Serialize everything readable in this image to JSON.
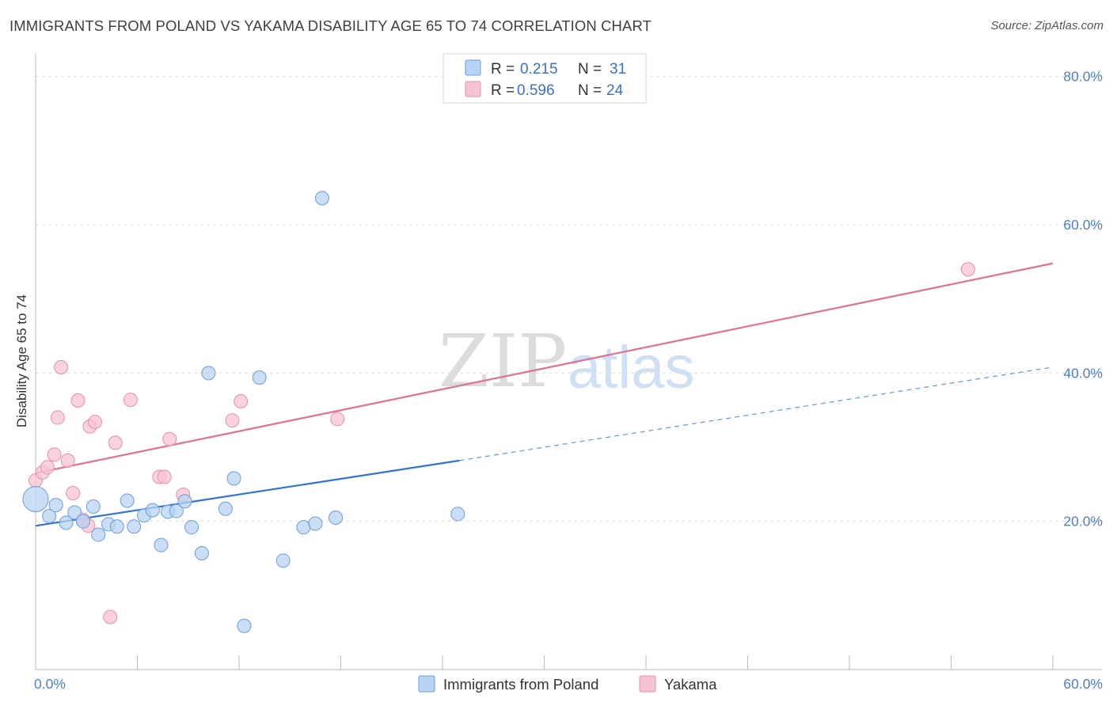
{
  "title": "IMMIGRANTS FROM POLAND VS YAKAMA DISABILITY AGE 65 TO 74 CORRELATION CHART",
  "source": "Source: ZipAtlas.com",
  "watermark": {
    "zip": "ZIP",
    "atlas": "atlas"
  },
  "colors": {
    "blue_fill": "#b8d3f3",
    "blue_stroke": "#6b9ddc",
    "blue_line": "#2f74d0",
    "pink_fill": "#f7c3d2",
    "pink_stroke": "#e690ab",
    "pink_line": "#e07096",
    "grid": "#dddddd",
    "tick_text": "#4a7fd0"
  },
  "legend": {
    "r_label": "R =",
    "n_label": "N =",
    "rows": [
      {
        "series": "blue",
        "r": "0.215",
        "n": "31"
      },
      {
        "series": "pink",
        "r": "0.596",
        "n": "24"
      }
    ]
  },
  "chart_data": {
    "type": "scatter",
    "title": "IMMIGRANTS FROM POLAND VS YAKAMA DISABILITY AGE 65 TO 74 CORRELATION CHART",
    "xlabel": "",
    "ylabel": "Disability Age 65 to 74",
    "xlim": [
      0,
      60
    ],
    "ylim": [
      0,
      82
    ],
    "x_tick_labels": [
      "0.0%",
      "60.0%"
    ],
    "y_ticks": [
      20,
      40,
      60,
      80
    ],
    "y_tick_labels": [
      "20.0%",
      "40.0%",
      "60.0%",
      "80.0%"
    ],
    "grid": true,
    "legend_position": "bottom",
    "series": [
      {
        "name": "Immigrants from Poland",
        "color": "blue",
        "points": [
          [
            0.0,
            23.0
          ],
          [
            0.8,
            20.7
          ],
          [
            1.2,
            22.2
          ],
          [
            1.8,
            19.8
          ],
          [
            2.3,
            21.2
          ],
          [
            2.8,
            20.0
          ],
          [
            3.4,
            22.0
          ],
          [
            3.7,
            18.2
          ],
          [
            4.3,
            19.6
          ],
          [
            4.8,
            19.3
          ],
          [
            5.4,
            22.8
          ],
          [
            5.8,
            19.3
          ],
          [
            6.4,
            20.8
          ],
          [
            6.9,
            21.5
          ],
          [
            7.4,
            16.8
          ],
          [
            7.8,
            21.3
          ],
          [
            8.3,
            21.4
          ],
          [
            8.8,
            22.7
          ],
          [
            9.2,
            19.2
          ],
          [
            9.8,
            15.7
          ],
          [
            10.2,
            40.0
          ],
          [
            11.2,
            21.7
          ],
          [
            11.7,
            25.8
          ],
          [
            12.3,
            5.9
          ],
          [
            13.2,
            39.4
          ],
          [
            14.6,
            14.7
          ],
          [
            15.8,
            19.2
          ],
          [
            16.5,
            19.7
          ],
          [
            16.9,
            63.6
          ],
          [
            17.7,
            20.5
          ],
          [
            24.9,
            21.0
          ]
        ],
        "trend": {
          "x0": 0,
          "y0": 19.4,
          "x1": 25,
          "y1": 28.2,
          "dashed_to_x": 60,
          "dashed_to_y": 40.8
        }
      },
      {
        "name": "Yakama",
        "color": "pink",
        "points": [
          [
            0.0,
            25.5
          ],
          [
            0.4,
            26.6
          ],
          [
            0.7,
            27.3
          ],
          [
            1.1,
            29.0
          ],
          [
            1.3,
            34.0
          ],
          [
            1.5,
            40.8
          ],
          [
            1.9,
            28.2
          ],
          [
            2.2,
            23.8
          ],
          [
            2.5,
            36.3
          ],
          [
            2.8,
            20.2
          ],
          [
            3.1,
            19.4
          ],
          [
            3.2,
            32.8
          ],
          [
            3.5,
            33.4
          ],
          [
            4.4,
            7.1
          ],
          [
            4.7,
            30.6
          ],
          [
            5.6,
            36.4
          ],
          [
            7.3,
            26.0
          ],
          [
            7.6,
            26.0
          ],
          [
            7.9,
            31.1
          ],
          [
            8.7,
            23.6
          ],
          [
            11.6,
            33.6
          ],
          [
            12.1,
            36.2
          ],
          [
            17.8,
            33.8
          ],
          [
            55.0,
            54.0
          ]
        ],
        "trend": {
          "x0": 0,
          "y0": 26.5,
          "x1": 60,
          "y1": 54.8
        }
      }
    ]
  }
}
